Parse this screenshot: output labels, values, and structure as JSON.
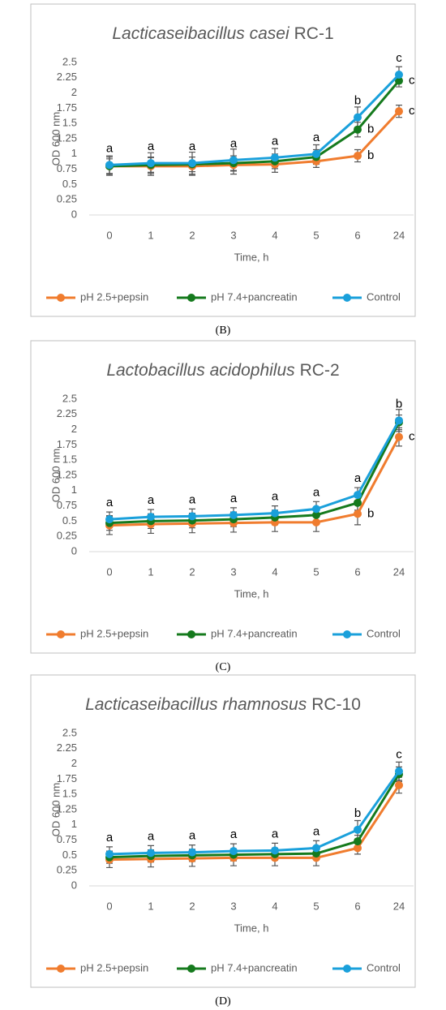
{
  "chart_data": [
    {
      "type": "line",
      "title": [
        "Lacticaseibacillus casei",
        "RC-1"
      ],
      "caption": "(B)",
      "x_label": "Time, h",
      "y_label": "OD 600 nm",
      "categories": [
        "0",
        "1",
        "2",
        "3",
        "4",
        "5",
        "6",
        "24"
      ],
      "ylim": [
        0,
        2.5
      ],
      "yticks": [
        0,
        0.25,
        0.5,
        0.75,
        1,
        1.25,
        1.5,
        1.75,
        2,
        2.25,
        2.5
      ],
      "legend": "bottom",
      "series": [
        {
          "name": "pH 2.5+pepsin",
          "color": "#f07c2e",
          "values": [
            0.8,
            0.8,
            0.8,
            0.82,
            0.83,
            0.88,
            0.97,
            1.7
          ],
          "errors": [
            0.15,
            0.15,
            0.15,
            0.15,
            0.13,
            0.1,
            0.1,
            0.1
          ]
        },
        {
          "name": "pH 7.4+pancreatin",
          "color": "#157a1d",
          "values": [
            0.8,
            0.82,
            0.83,
            0.85,
            0.88,
            0.95,
            1.4,
            2.2
          ],
          "errors": [
            0.12,
            0.12,
            0.12,
            0.12,
            0.12,
            0.12,
            0.12,
            0.1
          ]
        },
        {
          "name": "Control",
          "color": "#1aa0db",
          "values": [
            0.82,
            0.85,
            0.85,
            0.9,
            0.94,
            1.0,
            1.6,
            2.3
          ],
          "errors": [
            0.15,
            0.17,
            0.18,
            0.18,
            0.15,
            0.15,
            0.17,
            0.13
          ]
        }
      ],
      "annotations": [
        {
          "text": "a",
          "series": 2,
          "index": 0,
          "side": "above"
        },
        {
          "text": "a",
          "series": 2,
          "index": 1,
          "side": "above"
        },
        {
          "text": "a",
          "series": 2,
          "index": 2,
          "side": "above"
        },
        {
          "text": "a",
          "series": 2,
          "index": 3,
          "side": "above"
        },
        {
          "text": "a",
          "series": 2,
          "index": 4,
          "side": "above"
        },
        {
          "text": "a",
          "series": 2,
          "index": 5,
          "side": "above"
        },
        {
          "text": "b",
          "series": 2,
          "index": 6,
          "side": "above"
        },
        {
          "text": "b",
          "series": 1,
          "index": 6,
          "side": "right"
        },
        {
          "text": "b",
          "series": 0,
          "index": 6,
          "side": "right"
        },
        {
          "text": "c",
          "series": 2,
          "index": 7,
          "side": "above"
        },
        {
          "text": "c",
          "series": 1,
          "index": 7,
          "side": "right"
        },
        {
          "text": "c",
          "series": 0,
          "index": 7,
          "side": "right"
        }
      ]
    },
    {
      "type": "line",
      "title": [
        "Lactobacillus acidophilus",
        "RC-2"
      ],
      "caption": "(C)",
      "x_label": "Time, h",
      "y_label": "OD 600 nm",
      "categories": [
        "0",
        "1",
        "2",
        "3",
        "4",
        "5",
        "6",
        "24"
      ],
      "ylim": [
        0,
        2.5
      ],
      "yticks": [
        0,
        0.25,
        0.5,
        0.75,
        1,
        1.25,
        1.5,
        1.75,
        2,
        2.25,
        2.5
      ],
      "legend": "bottom",
      "series": [
        {
          "name": "pH 2.5+pepsin",
          "color": "#f07c2e",
          "values": [
            0.43,
            0.45,
            0.46,
            0.47,
            0.48,
            0.48,
            0.62,
            1.88
          ],
          "errors": [
            0.15,
            0.15,
            0.15,
            0.15,
            0.15,
            0.15,
            0.18,
            0.15
          ]
        },
        {
          "name": "pH 7.4+pancreatin",
          "color": "#157a1d",
          "values": [
            0.47,
            0.5,
            0.51,
            0.53,
            0.56,
            0.6,
            0.8,
            2.12
          ],
          "errors": [
            0.12,
            0.12,
            0.12,
            0.12,
            0.12,
            0.12,
            0.12,
            0.12
          ]
        },
        {
          "name": "Control",
          "color": "#1aa0db",
          "values": [
            0.53,
            0.57,
            0.58,
            0.6,
            0.63,
            0.7,
            0.93,
            2.15
          ],
          "errors": [
            0.12,
            0.12,
            0.12,
            0.12,
            0.12,
            0.12,
            0.12,
            0.18
          ]
        }
      ],
      "annotations": [
        {
          "text": "a",
          "series": 2,
          "index": 0,
          "side": "above"
        },
        {
          "text": "a",
          "series": 2,
          "index": 1,
          "side": "above"
        },
        {
          "text": "a",
          "series": 2,
          "index": 2,
          "side": "above"
        },
        {
          "text": "a",
          "series": 2,
          "index": 3,
          "side": "above"
        },
        {
          "text": "a",
          "series": 2,
          "index": 4,
          "side": "above"
        },
        {
          "text": "a",
          "series": 2,
          "index": 5,
          "side": "above"
        },
        {
          "text": "a",
          "series": 2,
          "index": 6,
          "side": "above"
        },
        {
          "text": "b",
          "series": 0,
          "index": 6,
          "side": "right"
        },
        {
          "text": "b",
          "series": 2,
          "index": 7,
          "side": "above"
        },
        {
          "text": "c",
          "series": 0,
          "index": 7,
          "side": "right"
        }
      ]
    },
    {
      "type": "line",
      "title": [
        "Lacticaseibacillus rhamnosus",
        "RC-10"
      ],
      "caption": "(D)",
      "x_label": "Time, h",
      "y_label": "OD 600 nm",
      "categories": [
        "0",
        "1",
        "2",
        "3",
        "4",
        "5",
        "6",
        "24"
      ],
      "ylim": [
        0,
        2.5
      ],
      "yticks": [
        0,
        0.25,
        0.5,
        0.75,
        1,
        1.25,
        1.5,
        1.75,
        2,
        2.25,
        2.5
      ],
      "legend": "bottom",
      "series": [
        {
          "name": "pH 2.5+pepsin",
          "color": "#f07c2e",
          "values": [
            0.43,
            0.44,
            0.45,
            0.46,
            0.46,
            0.46,
            0.62,
            1.65
          ],
          "errors": [
            0.13,
            0.13,
            0.13,
            0.13,
            0.13,
            0.13,
            0.1,
            0.13
          ]
        },
        {
          "name": "pH 7.4+pancreatin",
          "color": "#157a1d",
          "values": [
            0.47,
            0.49,
            0.5,
            0.51,
            0.52,
            0.53,
            0.73,
            1.83
          ],
          "errors": [
            0.1,
            0.1,
            0.1,
            0.1,
            0.1,
            0.1,
            0.1,
            0.12
          ]
        },
        {
          "name": "Control",
          "color": "#1aa0db",
          "values": [
            0.52,
            0.54,
            0.55,
            0.57,
            0.58,
            0.62,
            0.92,
            1.88
          ],
          "errors": [
            0.12,
            0.12,
            0.12,
            0.12,
            0.12,
            0.12,
            0.15,
            0.15
          ]
        }
      ],
      "annotations": [
        {
          "text": "a",
          "series": 2,
          "index": 0,
          "side": "above"
        },
        {
          "text": "a",
          "series": 2,
          "index": 1,
          "side": "above"
        },
        {
          "text": "a",
          "series": 2,
          "index": 2,
          "side": "above"
        },
        {
          "text": "a",
          "series": 2,
          "index": 3,
          "side": "above"
        },
        {
          "text": "a",
          "series": 2,
          "index": 4,
          "side": "above"
        },
        {
          "text": "a",
          "series": 2,
          "index": 5,
          "side": "above"
        },
        {
          "text": "b",
          "series": 2,
          "index": 6,
          "side": "above"
        },
        {
          "text": "c",
          "series": 2,
          "index": 7,
          "side": "above"
        }
      ]
    }
  ]
}
